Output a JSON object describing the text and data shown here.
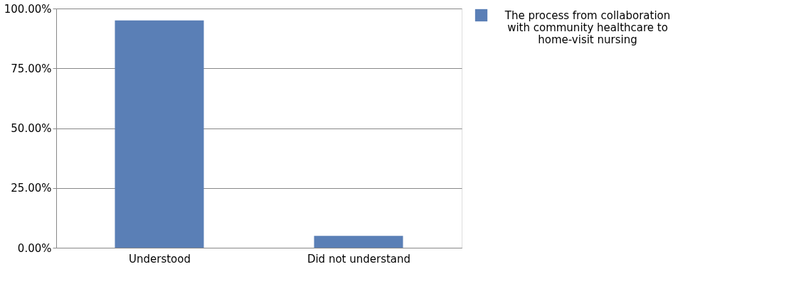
{
  "chart_data": {
    "type": "bar",
    "categories": [
      "Understood",
      "Did not understand"
    ],
    "series": [
      {
        "name": "The process from collaboration with community healthcare to home-visit nursing",
        "color": "#5a7fb6",
        "values": [
          95,
          5
        ]
      }
    ],
    "ylim": [
      0,
      100
    ],
    "yticks": [
      {
        "value": 0,
        "label": "0.00%"
      },
      {
        "value": 25,
        "label": "25.00%"
      },
      {
        "value": 50,
        "label": "50.00%"
      },
      {
        "value": 75,
        "label": "75.00%"
      },
      {
        "value": 100,
        "label": "100.00%"
      }
    ],
    "grid": "y",
    "legend": "right"
  }
}
